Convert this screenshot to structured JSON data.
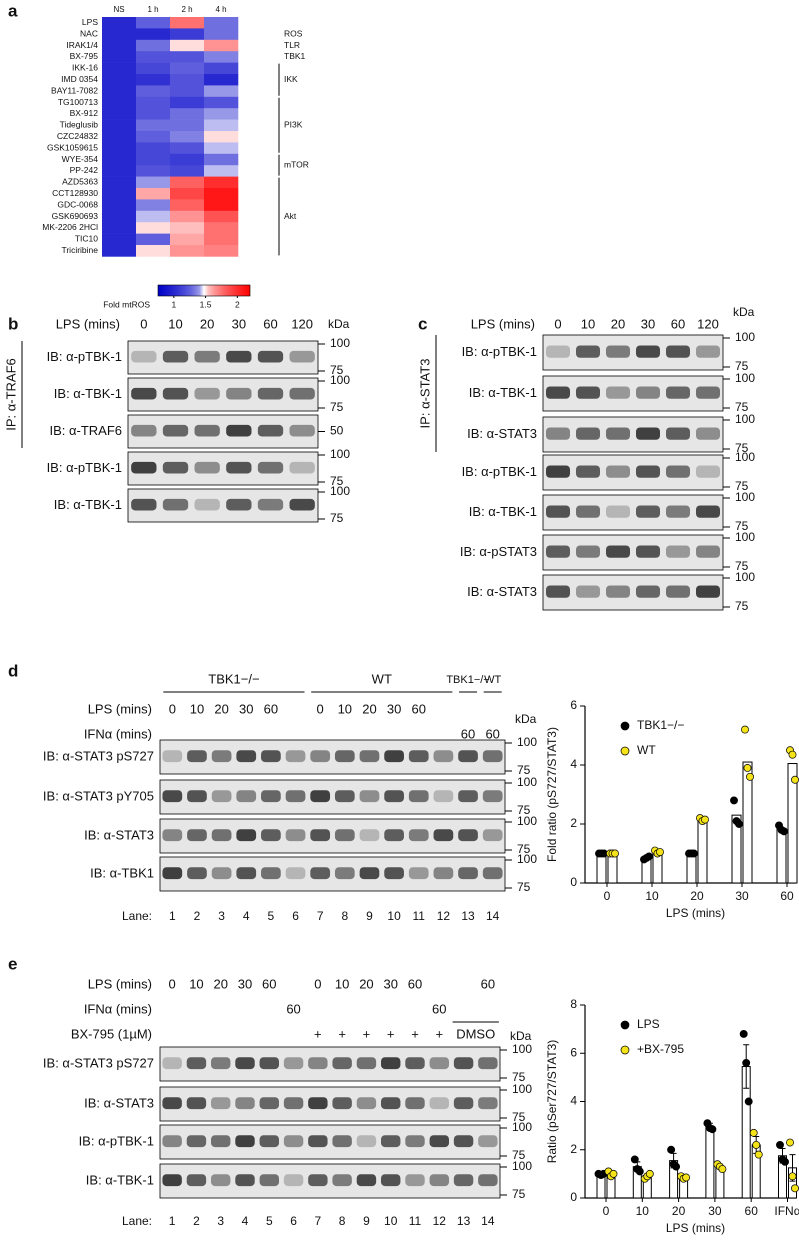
{
  "panel_labels": [
    "a",
    "b",
    "c",
    "d",
    "e"
  ],
  "chart_data": [
    {
      "type": "heatmap",
      "columns": [
        "NS",
        "1 h",
        "2 h",
        "4 h"
      ],
      "rows": [
        "LPS",
        "NAC",
        "IRAK1/4",
        "BX-795",
        "IKK-16",
        "IMD 0354",
        "BAY11-7082",
        "TG100713",
        "BX-912",
        "Tideglusib",
        "CZC24832",
        "GSK1059615",
        "WYE-354",
        "PP-242",
        "AZD5363",
        "CCT128930",
        "GDC-0068",
        "GSK690693",
        "MK-2206 2HCl",
        "TIC10",
        "Triciribine"
      ],
      "values": [
        [
          1,
          1.25,
          1.75,
          1.3
        ],
        [
          1,
          1.0,
          1.1,
          1.3
        ],
        [
          1,
          1.3,
          1.5,
          1.65
        ],
        [
          1,
          1.2,
          1.2,
          1.35
        ],
        [
          1,
          1.15,
          1.25,
          1.15
        ],
        [
          1,
          1.05,
          1.2,
          1.0
        ],
        [
          1,
          1.25,
          1.2,
          1.4
        ],
        [
          1,
          1.2,
          1.1,
          1.2
        ],
        [
          1,
          1.2,
          1.3,
          1.4
        ],
        [
          1,
          1.3,
          1.3,
          1.45
        ],
        [
          1,
          1.25,
          1.35,
          1.5
        ],
        [
          1,
          1.15,
          1.2,
          1.45
        ],
        [
          1,
          1.15,
          1.1,
          1.3
        ],
        [
          1,
          1.2,
          1.15,
          1.45
        ],
        [
          1,
          1.4,
          1.8,
          2.0
        ],
        [
          1,
          1.6,
          1.9,
          2.1
        ],
        [
          1,
          1.35,
          1.8,
          2.1
        ],
        [
          1,
          1.45,
          1.65,
          1.85
        ],
        [
          1,
          1.5,
          1.55,
          1.75
        ],
        [
          1,
          1.25,
          1.6,
          1.75
        ],
        [
          1,
          1.5,
          1.65,
          1.7
        ]
      ],
      "groups": [
        "ROS",
        "TLR",
        "TBK1",
        "IKK",
        "PI3K",
        "mTOR",
        "Akt"
      ],
      "colors": [
        "#0000c8",
        "#ffffff",
        "#ff0000"
      ],
      "clim": [
        0.75,
        2.2
      ],
      "cticks": [
        1,
        1.5,
        2
      ],
      "colorbar_label": "Fold mtROS"
    },
    {
      "type": "bar",
      "categories": [
        "0",
        "10",
        "20",
        "30",
        "60"
      ],
      "xlabel": "LPS (mins)",
      "ylabel": "Fold ratio (pS727/STAT3)",
      "ylim": [
        0,
        6
      ],
      "yticks": [
        0,
        2,
        4,
        6
      ],
      "legend": "top-left",
      "series": [
        {
          "name": "TBK1−/−",
          "color": "#000000",
          "values": [
            1.0,
            0.85,
            1.0,
            2.3,
            1.85
          ],
          "points": [
            [
              1.0,
              1.0,
              1.0
            ],
            [
              0.8,
              0.85,
              0.9
            ],
            [
              1.0,
              1.0,
              1.0
            ],
            [
              2.8,
              2.1,
              2.0
            ],
            [
              1.95,
              1.8,
              1.75
            ]
          ]
        },
        {
          "name": "WT",
          "color": "#f5e31a",
          "values": [
            1.0,
            1.05,
            2.15,
            4.1,
            4.05
          ],
          "points": [
            [
              1.0,
              1.0,
              1.0
            ],
            [
              1.1,
              1.0,
              1.05
            ],
            [
              2.2,
              2.1,
              2.15
            ],
            [
              5.2,
              3.9,
              3.6
            ],
            [
              4.5,
              4.35,
              3.5
            ]
          ]
        }
      ]
    },
    {
      "type": "bar",
      "categories": [
        "0",
        "10",
        "20",
        "30",
        "60",
        "IFNα"
      ],
      "xlabel": "LPS (mins)",
      "ylabel": "Ratio (pSer727/STAT3)",
      "ylim": [
        0,
        8
      ],
      "yticks": [
        0,
        2,
        4,
        6,
        8
      ],
      "legend": "top-left",
      "series": [
        {
          "name": "LPS",
          "color": "#000000",
          "values": [
            1.0,
            1.3,
            1.55,
            2.95,
            5.45,
            1.75
          ],
          "errors": [
            0.05,
            0.2,
            0.3,
            0.15,
            0.9,
            0.3
          ],
          "points": [
            [
              1.0,
              0.95,
              1.0
            ],
            [
              1.6,
              1.2,
              1.1
            ],
            [
              2.0,
              1.4,
              1.3
            ],
            [
              3.1,
              2.9,
              2.85
            ],
            [
              6.8,
              5.6,
              4.0
            ],
            [
              2.2,
              1.6,
              1.5
            ]
          ]
        },
        {
          "name": "+BX-795",
          "color": "#f5e31a",
          "values": [
            1.0,
            0.9,
            0.85,
            1.3,
            2.2,
            1.25
          ],
          "errors": [
            0.05,
            0.1,
            0.1,
            0.1,
            0.35,
            0.55
          ],
          "points": [
            [
              1.1,
              0.9,
              1.0
            ],
            [
              0.8,
              0.9,
              1.0
            ],
            [
              0.9,
              0.8,
              0.85
            ],
            [
              1.4,
              1.3,
              1.2
            ],
            [
              2.7,
              2.2,
              1.8
            ],
            [
              2.3,
              0.9,
              0.4
            ]
          ]
        }
      ]
    }
  ],
  "blots": {
    "b": {
      "lps_label": "LPS (mins)",
      "lanes": [
        "0",
        "10",
        "20",
        "30",
        "60",
        "120"
      ],
      "kda": "kDa",
      "ip": "IP: α-TRAF6",
      "rows": [
        {
          "label": "IB: α-pTBK-1",
          "markers": [
            "100",
            "75"
          ]
        },
        {
          "label": "IB: α-TBK-1",
          "markers": [
            "100",
            "75"
          ]
        },
        {
          "label": "IB: α-TRAF6",
          "markers": [
            "50"
          ]
        },
        {
          "label": "IB: α-pTBK-1",
          "markers": [
            "100",
            "75"
          ]
        },
        {
          "label": "IB: α-TBK-1",
          "markers": [
            "100",
            "75"
          ]
        }
      ]
    },
    "c": {
      "lps_label": "LPS (mins)",
      "lanes": [
        "0",
        "10",
        "20",
        "30",
        "60",
        "120"
      ],
      "kda": "kDa",
      "ip": "IP: α-STAT3",
      "rows": [
        {
          "label": "IB: α-pTBK-1",
          "markers": [
            "100",
            "75"
          ]
        },
        {
          "label": "IB: α-TBK-1",
          "markers": [
            "100",
            "75"
          ]
        },
        {
          "label": "IB: α-STAT3",
          "markers": [
            "100",
            "75"
          ]
        },
        {
          "label": "IB: α-pTBK-1",
          "markers": [
            "100",
            "75"
          ]
        },
        {
          "label": "IB: α-TBK-1",
          "markers": [
            "100",
            "75"
          ]
        },
        {
          "label": "IB: α-pSTAT3",
          "markers": [
            "100",
            "75"
          ]
        },
        {
          "label": "IB: α-STAT3",
          "markers": [
            "100",
            "75"
          ]
        }
      ]
    },
    "d": {
      "groups": [
        "TBK1−/−",
        "WT",
        "TBK1−/−",
        "WT"
      ],
      "conditions": [
        {
          "label": "LPS (mins)",
          "lanes": [
            "0",
            "10",
            "20",
            "30",
            "60",
            null,
            "0",
            "10",
            "20",
            "30",
            "60",
            null,
            null,
            null
          ]
        },
        {
          "label": "IFNα (mins)",
          "lanes": [
            null,
            null,
            null,
            null,
            null,
            null,
            null,
            null,
            null,
            null,
            null,
            null,
            "60",
            "60"
          ]
        }
      ],
      "kda": "kDa",
      "rows": [
        {
          "label": "IB: α-STAT3 pS727",
          "markers": [
            "100",
            "75"
          ]
        },
        {
          "label": "IB: α-STAT3 pY705",
          "markers": [
            "100",
            "75"
          ]
        },
        {
          "label": "IB: α-STAT3",
          "markers": [
            "100",
            "75"
          ]
        },
        {
          "label": "IB: α-TBK1",
          "markers": [
            "100",
            "75"
          ]
        }
      ],
      "lane_label": "Lane:",
      "lanes": [
        "1",
        "2",
        "3",
        "4",
        "5",
        "6",
        "7",
        "8",
        "9",
        "10",
        "11",
        "12",
        "13",
        "14"
      ]
    },
    "e": {
      "conditions": [
        {
          "label": "LPS (mins)",
          "lanes": [
            "0",
            "10",
            "20",
            "30",
            "60",
            null,
            "0",
            "10",
            "20",
            "30",
            "60",
            null,
            null,
            "60"
          ]
        },
        {
          "label": "IFNα (mins)",
          "lanes": [
            null,
            null,
            null,
            null,
            null,
            "60",
            null,
            null,
            null,
            null,
            null,
            "60",
            null,
            null
          ]
        },
        {
          "label": "BX-795 (1µM)",
          "lanes": [
            null,
            null,
            null,
            null,
            null,
            null,
            "+",
            "+",
            "+",
            "+",
            "+",
            "+",
            null,
            null
          ]
        }
      ],
      "dmso": "DMSO",
      "kda": "kDa",
      "rows": [
        {
          "label": "IB: α-STAT3 pS727",
          "markers": [
            "100",
            "75"
          ]
        },
        {
          "label": "IB: α-STAT3",
          "markers": [
            "100",
            "75"
          ]
        },
        {
          "label": "IB: α-pTBK-1",
          "markers": [
            "100",
            "75"
          ]
        },
        {
          "label": "IB: α-TBK-1",
          "markers": [
            "100",
            "75"
          ]
        }
      ],
      "lane_label": "Lane:",
      "lanes": [
        "1",
        "2",
        "3",
        "4",
        "5",
        "6",
        "7",
        "8",
        "9",
        "10",
        "11",
        "12",
        "13",
        "14"
      ]
    }
  }
}
